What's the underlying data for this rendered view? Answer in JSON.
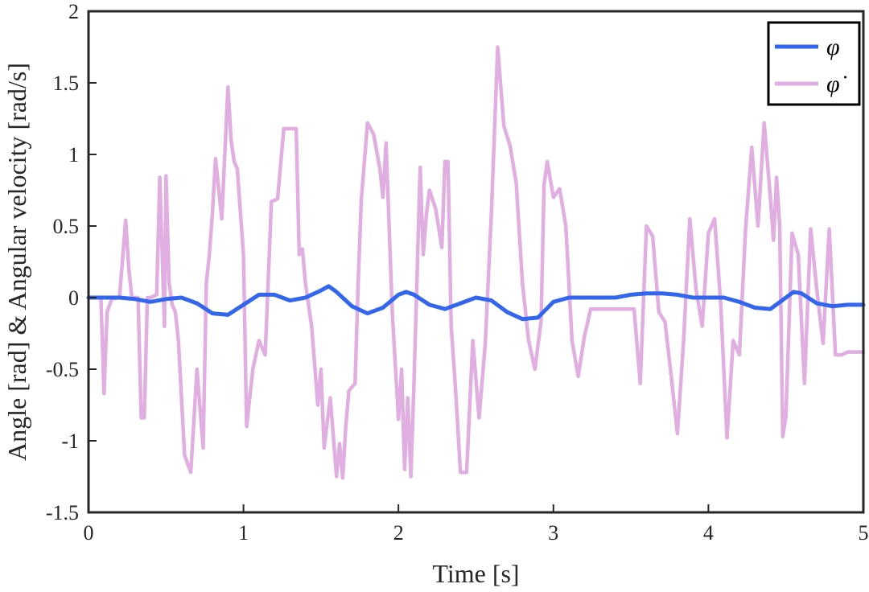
{
  "chart_data": {
    "type": "line",
    "title": "",
    "xlabel": "Time [s]",
    "ylabel": "Angle [rad] & Angular velocity [rad/s]",
    "xlim": [
      0,
      5
    ],
    "ylim": [
      -1.5,
      2
    ],
    "xticks": [
      "0",
      "1",
      "2",
      "3",
      "4",
      "5"
    ],
    "yticks": [
      "-1.5",
      "-1",
      "-0.5",
      "0",
      "0.5",
      "1",
      "1.5",
      "2"
    ],
    "grid": false,
    "legend_position": "top-right",
    "series": [
      {
        "name": "φ",
        "color": "#3366ee",
        "x": [
          0,
          0.1,
          0.2,
          0.3,
          0.4,
          0.5,
          0.6,
          0.7,
          0.8,
          0.9,
          1.0,
          1.1,
          1.2,
          1.3,
          1.4,
          1.5,
          1.55,
          1.6,
          1.7,
          1.8,
          1.9,
          2.0,
          2.05,
          2.1,
          2.2,
          2.3,
          2.4,
          2.5,
          2.6,
          2.7,
          2.8,
          2.9,
          3.0,
          3.1,
          3.2,
          3.3,
          3.4,
          3.5,
          3.6,
          3.7,
          3.8,
          3.9,
          4.0,
          4.1,
          4.2,
          4.3,
          4.4,
          4.5,
          4.55,
          4.6,
          4.7,
          4.8,
          4.9,
          5.0
        ],
        "y": [
          0,
          0,
          0,
          -0.01,
          -0.03,
          -0.01,
          0,
          -0.04,
          -0.11,
          -0.12,
          -0.05,
          0.02,
          0.02,
          -0.02,
          0,
          0.05,
          0.08,
          0.04,
          -0.06,
          -0.11,
          -0.07,
          0.02,
          0.04,
          0.02,
          -0.05,
          -0.08,
          -0.04,
          0,
          -0.02,
          -0.1,
          -0.15,
          -0.14,
          -0.03,
          0,
          0,
          0,
          0,
          0.02,
          0.03,
          0.03,
          0.02,
          0,
          0,
          0,
          -0.03,
          -0.07,
          -0.08,
          0,
          0.04,
          0.03,
          -0.04,
          -0.06,
          -0.05,
          -0.05
        ]
      },
      {
        "name": "φ̇",
        "color": "#e0aee0",
        "x": [
          0,
          0.08,
          0.1,
          0.12,
          0.15,
          0.2,
          0.24,
          0.26,
          0.28,
          0.32,
          0.34,
          0.36,
          0.38,
          0.4,
          0.44,
          0.46,
          0.49,
          0.5,
          0.52,
          0.54,
          0.56,
          0.58,
          0.62,
          0.66,
          0.7,
          0.74,
          0.76,
          0.78,
          0.8,
          0.82,
          0.86,
          0.9,
          0.92,
          0.94,
          0.96,
          1.0,
          1.02,
          1.06,
          1.1,
          1.14,
          1.18,
          1.22,
          1.26,
          1.3,
          1.34,
          1.36,
          1.38,
          1.4,
          1.44,
          1.48,
          1.5,
          1.52,
          1.56,
          1.6,
          1.62,
          1.64,
          1.66,
          1.68,
          1.72,
          1.74,
          1.76,
          1.8,
          1.84,
          1.88,
          1.9,
          1.92,
          1.96,
          2.0,
          2.02,
          2.04,
          2.06,
          2.08,
          2.1,
          2.14,
          2.16,
          2.18,
          2.2,
          2.24,
          2.28,
          2.3,
          2.32,
          2.34,
          2.36,
          2.38,
          2.4,
          2.44,
          2.48,
          2.52,
          2.56,
          2.6,
          2.64,
          2.68,
          2.72,
          2.76,
          2.8,
          2.84,
          2.88,
          2.92,
          2.94,
          2.96,
          3.0,
          3.04,
          3.08,
          3.12,
          3.16,
          3.2,
          3.24,
          3.28,
          3.32,
          3.36,
          3.4,
          3.44,
          3.48,
          3.52,
          3.56,
          3.6,
          3.64,
          3.68,
          3.72,
          3.76,
          3.8,
          3.84,
          3.88,
          3.92,
          3.96,
          4.0,
          4.04,
          4.08,
          4.12,
          4.16,
          4.2,
          4.24,
          4.28,
          4.32,
          4.36,
          4.4,
          4.42,
          4.44,
          4.46,
          4.48,
          4.5,
          4.54,
          4.58,
          4.62,
          4.66,
          4.7,
          4.74,
          4.78,
          4.82,
          4.86,
          4.9,
          4.94,
          4.98,
          5.0
        ],
        "y": [
          0,
          0,
          -0.67,
          -0.1,
          -0.01,
          0,
          0.54,
          0.2,
          0,
          0,
          -0.84,
          -0.84,
          0,
          0,
          0.02,
          0.84,
          -0.2,
          0.85,
          0.1,
          -0.05,
          -0.1,
          -0.3,
          -1.1,
          -1.22,
          -0.5,
          -1.05,
          0.1,
          0.3,
          0.6,
          0.97,
          0.55,
          1.47,
          1.1,
          0.95,
          0.9,
          0.3,
          -0.9,
          -0.5,
          -0.3,
          -0.4,
          0.67,
          0.69,
          1.18,
          1.18,
          1.18,
          0.3,
          0.34,
          0.1,
          -0.2,
          -0.75,
          -0.5,
          -1.05,
          -0.7,
          -1.25,
          -1.02,
          -1.26,
          -0.9,
          -0.65,
          -0.6,
          0.1,
          0.68,
          1.22,
          1.14,
          0.9,
          0.7,
          1.08,
          -0.1,
          -0.85,
          -0.5,
          -1.2,
          -0.7,
          -1.25,
          -0.6,
          0.91,
          0.3,
          0.58,
          0.75,
          0.62,
          0.35,
          0.95,
          0.95,
          -0.2,
          -0.5,
          -0.85,
          -1.22,
          -1.22,
          -0.3,
          -0.84,
          -0.32,
          0.6,
          1.75,
          1.2,
          1.06,
          0.8,
          0.1,
          -0.3,
          -0.5,
          -0.17,
          0.79,
          0.95,
          0.7,
          0.76,
          0.5,
          -0.3,
          -0.55,
          -0.27,
          -0.08,
          -0.08,
          -0.08,
          -0.08,
          -0.08,
          -0.08,
          -0.08,
          -0.08,
          -0.6,
          0.5,
          0.43,
          -0.1,
          -0.17,
          -0.55,
          -0.95,
          -0.3,
          0.55,
          0.06,
          -0.2,
          0.45,
          0.55,
          -0.05,
          -0.98,
          -0.3,
          -0.4,
          0.48,
          1.05,
          0.5,
          1.22,
          0.7,
          0.4,
          0.84,
          0.5,
          -0.97,
          -0.83,
          0.45,
          0.3,
          -0.6,
          0.48,
          0.05,
          -0.32,
          0.48,
          -0.4,
          -0.4,
          -0.38,
          -0.38,
          -0.38,
          -0.38
        ]
      }
    ]
  }
}
